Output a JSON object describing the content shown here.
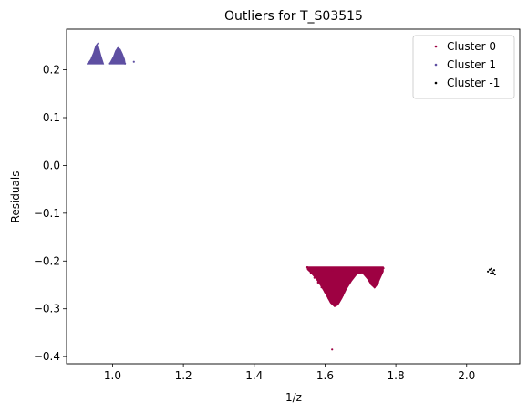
{
  "chart_data": {
    "type": "scatter",
    "title": "Outliers for T_S03515",
    "xlabel": "1/z",
    "ylabel": "Residuals",
    "xlim": [
      0.87,
      2.15
    ],
    "ylim": [
      -0.415,
      0.285
    ],
    "x_ticks": [
      1.0,
      1.2,
      1.4,
      1.6,
      1.8,
      2.0
    ],
    "x_tick_labels": [
      "1.0",
      "1.2",
      "1.4",
      "1.6",
      "1.8",
      "2.0"
    ],
    "y_ticks": [
      -0.4,
      -0.3,
      -0.2,
      -0.1,
      0.0,
      0.1,
      0.2
    ],
    "y_tick_labels": [
      "−0.4",
      "−0.3",
      "−0.2",
      "−0.1",
      "0.0",
      "0.1",
      "0.2"
    ],
    "grid": false,
    "legend_position": "top-right",
    "series": [
      {
        "name": "Cluster 0",
        "color": "#9e0142",
        "points": [
          [
            1.55,
            -0.213
          ],
          [
            1.56,
            -0.225
          ],
          [
            1.57,
            -0.235
          ],
          [
            1.58,
            -0.245
          ],
          [
            1.59,
            -0.255
          ],
          [
            1.6,
            -0.265
          ],
          [
            1.61,
            -0.278
          ],
          [
            1.62,
            -0.288
          ],
          [
            1.63,
            -0.293
          ],
          [
            1.64,
            -0.285
          ],
          [
            1.65,
            -0.272
          ],
          [
            1.66,
            -0.258
          ],
          [
            1.67,
            -0.245
          ],
          [
            1.68,
            -0.232
          ],
          [
            1.69,
            -0.222
          ],
          [
            1.7,
            -0.215
          ],
          [
            1.71,
            -0.225
          ],
          [
            1.72,
            -0.235
          ],
          [
            1.73,
            -0.248
          ],
          [
            1.74,
            -0.255
          ],
          [
            1.75,
            -0.245
          ],
          [
            1.76,
            -0.225
          ],
          [
            1.765,
            -0.215
          ],
          [
            1.58,
            -0.215
          ],
          [
            1.6,
            -0.215
          ],
          [
            1.62,
            -0.22
          ],
          [
            1.64,
            -0.215
          ],
          [
            1.66,
            -0.215
          ],
          [
            1.68,
            -0.215
          ],
          [
            1.72,
            -0.215
          ],
          [
            1.74,
            -0.215
          ],
          [
            1.62,
            -0.385
          ]
        ]
      },
      {
        "name": "Cluster 1",
        "color": "#5e4fa2",
        "points": [
          [
            0.93,
            0.213
          ],
          [
            0.94,
            0.215
          ],
          [
            0.945,
            0.225
          ],
          [
            0.95,
            0.235
          ],
          [
            0.955,
            0.245
          ],
          [
            0.96,
            0.255
          ],
          [
            0.965,
            0.225
          ],
          [
            0.97,
            0.215
          ],
          [
            0.99,
            0.213
          ],
          [
            1.0,
            0.215
          ],
          [
            1.005,
            0.225
          ],
          [
            1.01,
            0.235
          ],
          [
            1.015,
            0.245
          ],
          [
            1.02,
            0.24
          ],
          [
            1.025,
            0.23
          ],
          [
            1.03,
            0.218
          ],
          [
            1.035,
            0.213
          ],
          [
            1.06,
            0.217
          ]
        ]
      },
      {
        "name": "Cluster -1",
        "color": "#000000",
        "points": [
          [
            2.06,
            -0.222
          ],
          [
            2.065,
            -0.218
          ],
          [
            2.07,
            -0.216
          ],
          [
            2.072,
            -0.221
          ],
          [
            2.075,
            -0.225
          ],
          [
            2.078,
            -0.219
          ],
          [
            2.08,
            -0.228
          ],
          [
            2.068,
            -0.226
          ]
        ]
      }
    ]
  }
}
